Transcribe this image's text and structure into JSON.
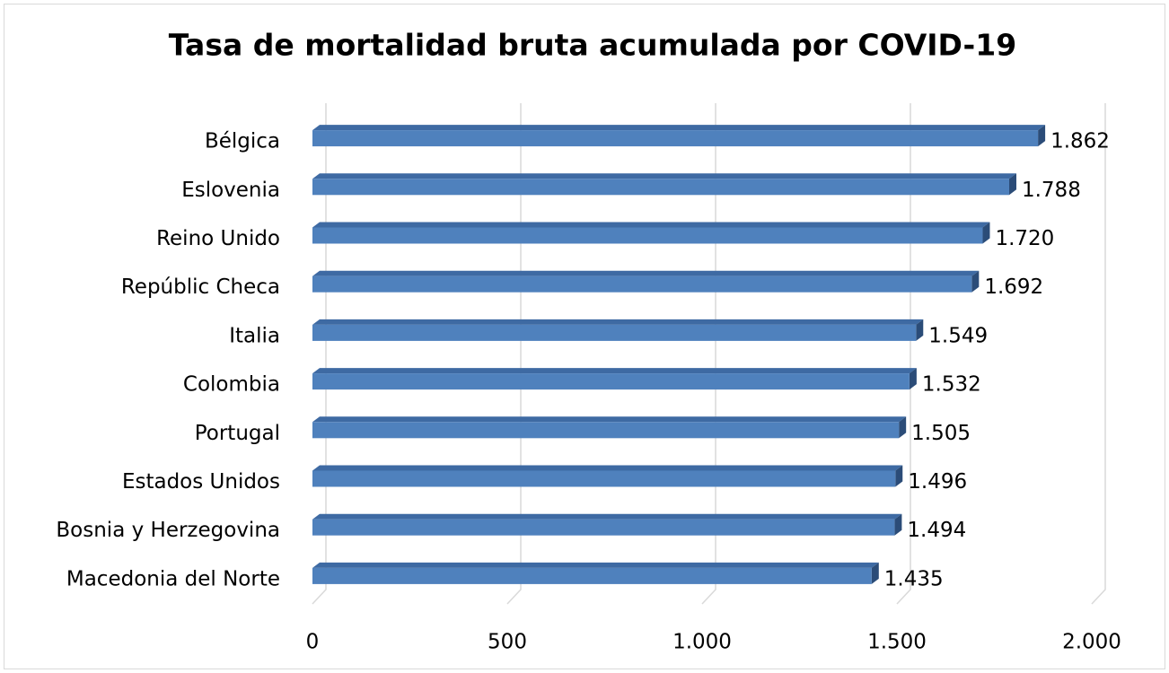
{
  "chart_data": {
    "type": "bar",
    "orientation": "horizontal",
    "title": "Tasa de mortalidad bruta acumulada por COVID-19",
    "categories": [
      "Bélgica",
      "Eslovenia",
      "Reino Unido",
      "Repúblic Checa",
      "Italia",
      "Colombia",
      "Portugal",
      "Estados Unidos",
      "Bosnia y Herzegovina",
      "Macedonia del Norte"
    ],
    "values": [
      1862,
      1788,
      1720,
      1692,
      1549,
      1532,
      1505,
      1496,
      1494,
      1435
    ],
    "value_labels": [
      "1.862",
      "1.788",
      "1.720",
      "1.692",
      "1.549",
      "1.532",
      "1.505",
      "1.496",
      "1.494",
      "1.435"
    ],
    "color": "#4f81bd",
    "xlim": [
      0,
      2000
    ],
    "xticks": [
      0,
      500,
      {
        "value": 1000,
        "label": "1.000"
      },
      {
        "value": 1500,
        "label": "1.500"
      },
      {
        "value": 2000,
        "label": "2.000"
      }
    ],
    "grid": true
  }
}
